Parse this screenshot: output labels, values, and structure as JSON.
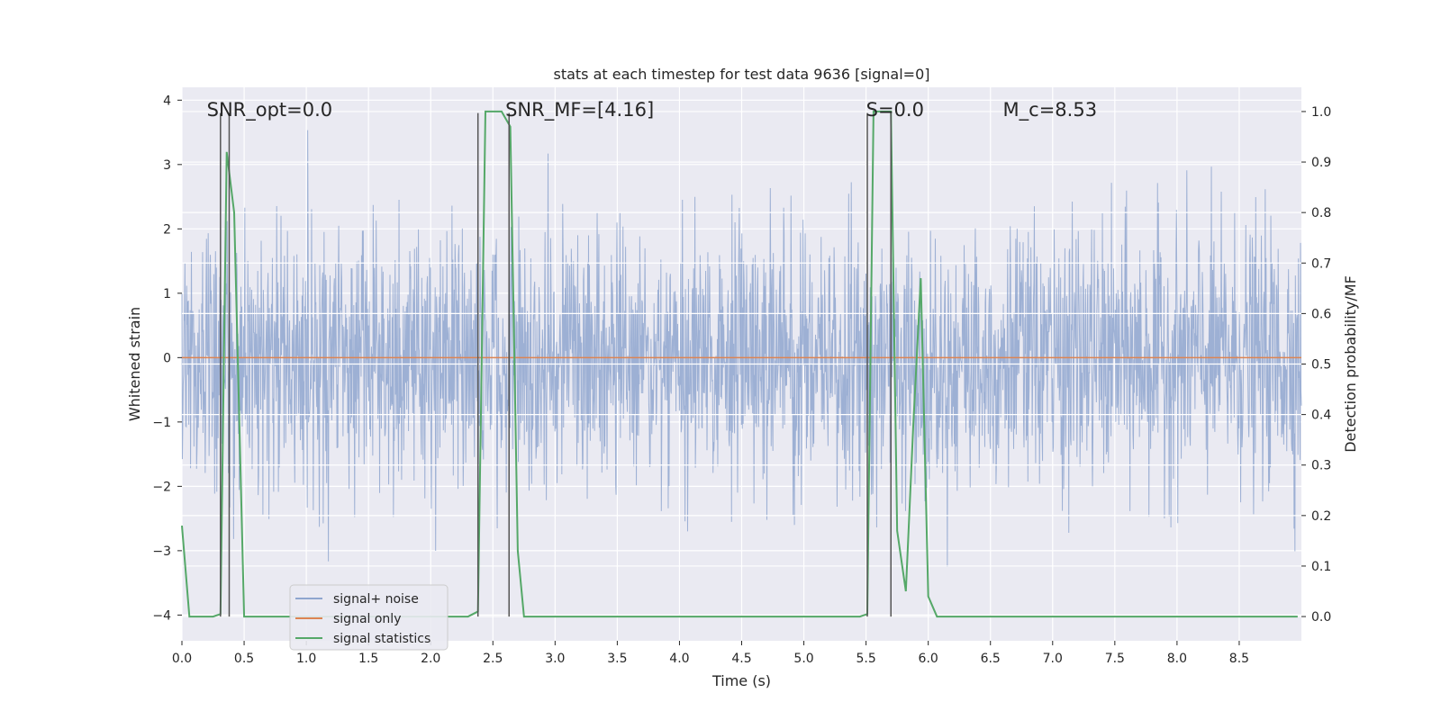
{
  "chart_data": {
    "type": "line",
    "title": "stats at each timestep for test data 9636 [signal=0]",
    "xlabel": "Time (s)",
    "ylabel_left": "Whitened strain",
    "ylabel_right": "Detection probability/MF",
    "xlim": [
      0.0,
      9.0
    ],
    "ylim_left": [
      -4.4,
      4.2
    ],
    "ylim_right": [
      -0.048,
      1.048
    ],
    "x_ticks": [
      "0.0",
      "0.5",
      "1.0",
      "1.5",
      "2.0",
      "2.5",
      "3.0",
      "3.5",
      "4.0",
      "4.5",
      "5.0",
      "5.5",
      "6.0",
      "6.5",
      "7.0",
      "7.5",
      "8.0",
      "8.5"
    ],
    "y_ticks_left": [
      "−4",
      "−3",
      "−2",
      "−1",
      "0",
      "1",
      "2",
      "3",
      "4"
    ],
    "y_ticks_right": [
      "0.0",
      "0.1",
      "0.2",
      "0.3",
      "0.4",
      "0.5",
      "0.6",
      "0.7",
      "0.8",
      "0.9",
      "1.0"
    ],
    "grid": true,
    "legend_position": "lower-left",
    "annotations": [
      {
        "label": "SNR_opt=0.0",
        "x": 0.2,
        "y": 3.85
      },
      {
        "label": "SNR_MF=[4.16]",
        "x": 2.6,
        "y": 3.85
      },
      {
        "label": "S=0.0",
        "x": 5.5,
        "y": 3.85
      },
      {
        "label": "M_c=8.53",
        "x": 6.6,
        "y": 3.85
      }
    ],
    "vertical_lines": [
      {
        "x": 0.31,
        "y_top": 3.8
      },
      {
        "x": 0.38,
        "y_top": 3.8
      },
      {
        "x": 2.38,
        "y_top": 3.8
      },
      {
        "x": 2.63,
        "y_top": 3.8
      },
      {
        "x": 5.51,
        "y_top": 3.8
      },
      {
        "x": 5.7,
        "y_top": 3.8
      }
    ],
    "series": [
      {
        "name": "signal+ noise",
        "color": "#8fa6cf",
        "kind": "noise",
        "amplitude": 1.0,
        "duration": [
          0.0,
          9.0
        ]
      },
      {
        "name": "signal only",
        "color": "#dd8452",
        "x": [
          0.0,
          9.0
        ],
        "y": [
          0.0,
          0.0
        ]
      },
      {
        "name": "signal statistics",
        "color": "#55a868",
        "x": [
          0.0,
          0.06,
          0.12,
          0.25,
          0.31,
          0.36,
          0.42,
          0.5,
          2.3,
          2.38,
          2.44,
          2.57,
          2.64,
          2.7,
          2.75,
          5.45,
          5.51,
          5.56,
          5.7,
          5.75,
          5.82,
          5.88,
          5.94,
          6.0,
          6.07,
          8.97
        ],
        "y": [
          0.18,
          0.0,
          0.0,
          0.0,
          0.005,
          0.92,
          0.8,
          0.0,
          0.0,
          0.01,
          1.0,
          1.0,
          0.97,
          0.13,
          0.0,
          0.0,
          0.005,
          1.0,
          1.0,
          0.17,
          0.05,
          0.38,
          0.67,
          0.04,
          0.0,
          0.0
        ]
      }
    ]
  }
}
